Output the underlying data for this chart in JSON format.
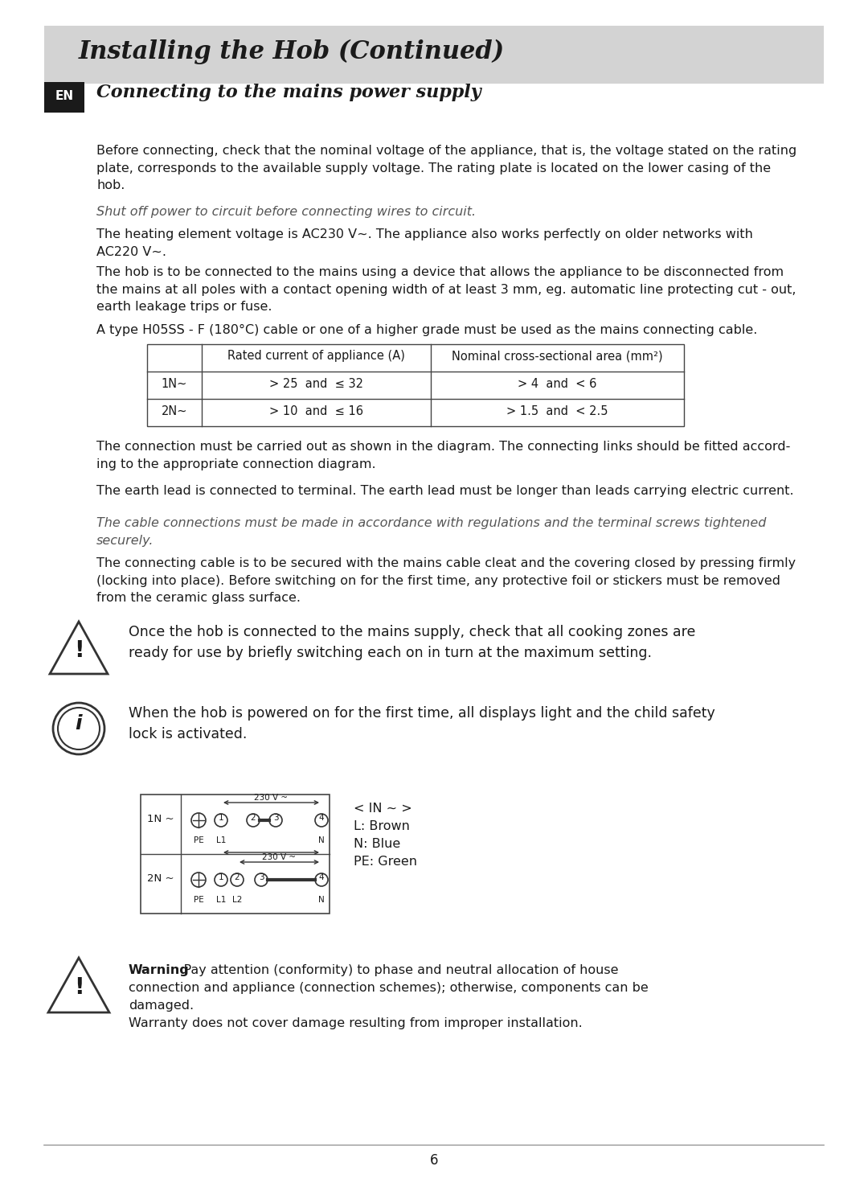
{
  "page_bg": "#ffffff",
  "header_bg": "#d3d3d3",
  "header_text": "Installing the Hob (Continued)",
  "header_text_color": "#1a1a1a",
  "en_box_bg": "#1a1a1a",
  "en_box_text": "EN",
  "section_title": "Connecting to the mains power supply",
  "para1": "Before connecting, check that the nominal voltage of the appliance, that is, the voltage stated on the rating\nplate, corresponds to the available supply voltage. The rating plate is located on the lower casing of the\nhob.",
  "italic1": "Shut off power to circuit before connecting wires to circuit.",
  "para2": "The heating element voltage is AC230 V~. The appliance also works perfectly on older networks with\nAC220 V~.",
  "para3": "The hob is to be connected to the mains using a device that allows the appliance to be disconnected from\nthe mains at all poles with a contact opening width of at least 3 mm, eg. automatic line protecting cut - out,\nearth leakage trips or fuse.",
  "para4": "A type H05SS - F (180°C) cable or one of a higher grade must be used as the mains connecting cable.",
  "table_col2": "Rated current of appliance (A)",
  "table_col3": "Nominal cross-sectional area (mm²)",
  "table_row1_c1": "1N~",
  "table_row1_c2": "> 25  and  ≤ 32",
  "table_row1_c3": "> 4  and  < 6",
  "table_row2_c1": "2N~",
  "table_row2_c2": "> 10  and  ≤ 16",
  "table_row2_c3": "> 1.5  and  < 2.5",
  "para5": "The connection must be carried out as shown in the diagram. The connecting links should be fitted accord-\ning to the appropriate connection diagram.",
  "para6": "The earth lead is connected to terminal. The earth lead must be longer than leads carrying electric current.",
  "italic2": "The cable connections must be made in accordance with regulations and the terminal screws tightened\nsecurely.",
  "para7": "The connecting cable is to be secured with the mains cable cleat and the covering closed by pressing firmly\n(locking into place). Before switching on for the first time, any protective foil or stickers must be removed\nfrom the ceramic glass surface.",
  "warning1_text": "Once the hob is connected to the mains supply, check that all cooking zones are\nready for use by briefly switching each on in turn at the maximum setting.",
  "info1_text": "When the hob is powered on for the first time, all displays light and the child safety\nlock is activated.",
  "legend_line1": "< IN ~ >",
  "legend_line2": "L: Brown",
  "legend_line3": "N: Blue",
  "legend_line4": "PE: Green",
  "warning2_bold": "Warning",
  "warning2_rest": ": Pay attention (conformity) to phase and neutral allocation of house\nconnection and appliance (connection schemes); otherwise, components can be\ndamaged.",
  "warning2_last": "Warranty does not cover damage resulting from improper installation.",
  "page_number": "6",
  "text_color": "#1a1a1a",
  "italic_color": "#555555"
}
